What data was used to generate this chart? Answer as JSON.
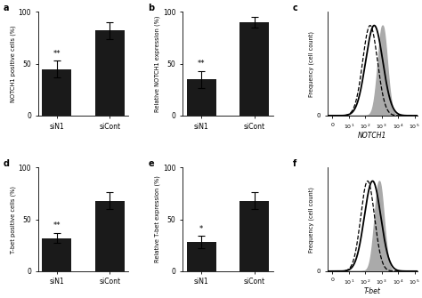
{
  "panel_a": {
    "bars": [
      45,
      82
    ],
    "errors": [
      8,
      8
    ],
    "xticks": [
      "siN1",
      "siCont"
    ],
    "ylabel": "NOTCH1 positive cells (%)",
    "ylim": [
      0,
      100
    ],
    "yticks": [
      0,
      50,
      100
    ],
    "annotation": "**",
    "label": "a"
  },
  "panel_b": {
    "bars": [
      35,
      90
    ],
    "errors": [
      8,
      5
    ],
    "xticks": [
      "siN1",
      "siCont"
    ],
    "ylabel": "Relative NOTCH1 expression (%)",
    "ylim": [
      0,
      100
    ],
    "yticks": [
      0,
      50,
      100
    ],
    "annotation": "**",
    "label": "b"
  },
  "panel_c": {
    "xlabel": "NOTCH1",
    "ylabel": "Frequency (cell count)",
    "label": "c",
    "iso_mu": 2.3,
    "iso_sig": 0.45,
    "sin1_mu": 2.55,
    "sin1_sig": 0.52,
    "sicont_mu": 3.05,
    "sicont_sig": 0.28
  },
  "panel_d": {
    "bars": [
      32,
      68
    ],
    "errors": [
      5,
      8
    ],
    "xticks": [
      "siN1",
      "siCont"
    ],
    "ylabel": "T-bet positive cells (%)",
    "ylim": [
      0,
      100
    ],
    "yticks": [
      0,
      50,
      100
    ],
    "annotation": "**",
    "label": "d"
  },
  "panel_e": {
    "bars": [
      28,
      68
    ],
    "errors": [
      6,
      8
    ],
    "xticks": [
      "siN1",
      "siCont"
    ],
    "ylabel": "Relative T-bet expression (%)",
    "ylim": [
      0,
      100
    ],
    "yticks": [
      0,
      50,
      100
    ],
    "annotation": "*",
    "label": "e"
  },
  "panel_f": {
    "xlabel": "T-bet",
    "ylabel": "Frequency (cell count)",
    "label": "f",
    "iso_mu": 2.15,
    "iso_sig": 0.42,
    "sin1_mu": 2.45,
    "sin1_sig": 0.5,
    "sicont_mu": 2.85,
    "sicont_sig": 0.28
  },
  "bar_color": "#1a1a1a",
  "bar_width": 0.55,
  "capsize": 3
}
